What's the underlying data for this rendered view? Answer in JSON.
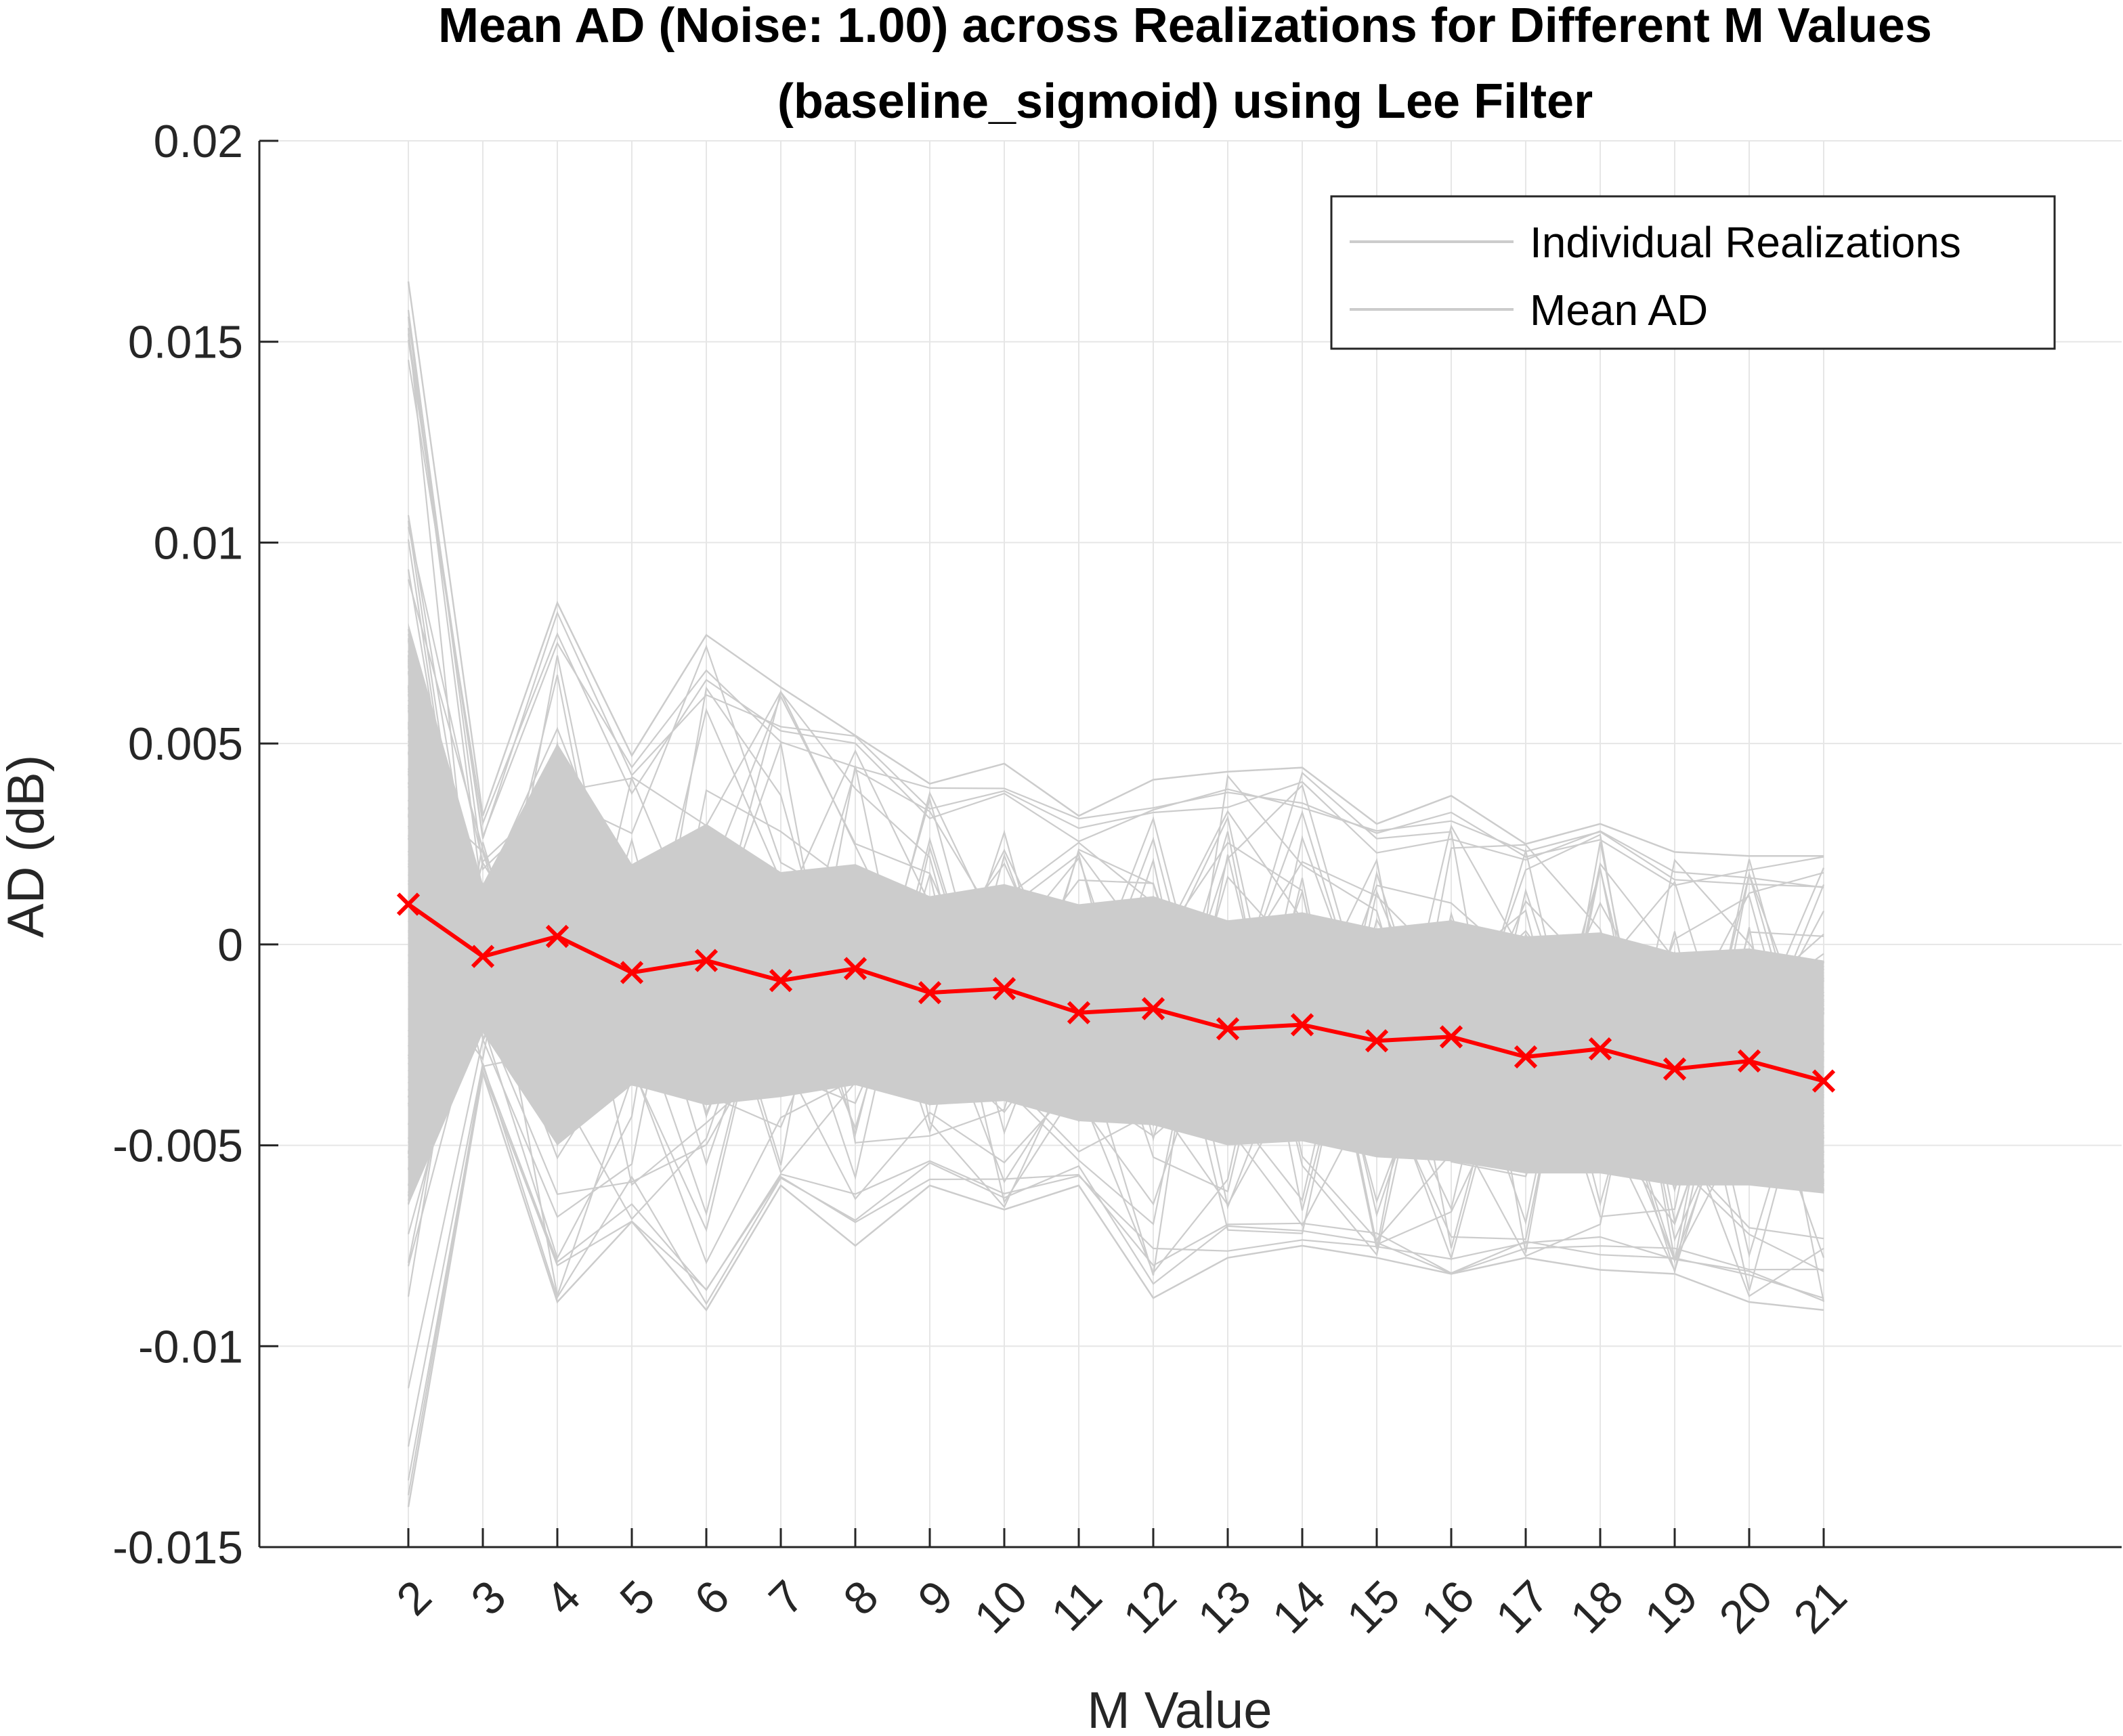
{
  "chart_data": {
    "type": "line",
    "title": [
      "Mean AD (Noise: 1.00) across Realizations for Different M Values",
      "(baseline_sigmoid) using Lee Filter"
    ],
    "xlabel": "M Value",
    "ylabel": "AD (dB)",
    "categories": [
      "2",
      "3",
      "4",
      "5",
      "6",
      "7",
      "8",
      "9",
      "10",
      "11",
      "12",
      "13",
      "14",
      "15",
      "16",
      "17",
      "18",
      "19",
      "20",
      "21"
    ],
    "x": [
      2,
      3,
      4,
      5,
      6,
      7,
      8,
      9,
      10,
      11,
      12,
      13,
      14,
      15,
      16,
      17,
      18,
      19,
      20,
      21
    ],
    "xlim": [
      0,
      25
    ],
    "ylim": [
      -0.015,
      0.02
    ],
    "yticks": [
      -0.015,
      -0.01,
      -0.005,
      0,
      0.005,
      0.01,
      0.015,
      0.02
    ],
    "ytick_labels": [
      "-0.015",
      "-0.01",
      "-0.005",
      "0",
      "0.005",
      "0.01",
      "0.015",
      "0.02"
    ],
    "grid": true,
    "legend_position": "top-right",
    "series": [
      {
        "name": "Individual Realizations",
        "color": "#cccccc",
        "style": "band",
        "upper": [
          0.0165,
          0.0032,
          0.0085,
          0.0047,
          0.0077,
          0.0064,
          0.0052,
          0.004,
          0.0045,
          0.0032,
          0.0041,
          0.0043,
          0.0044,
          0.003,
          0.0037,
          0.0025,
          0.003,
          0.0023,
          0.0022,
          0.0022
        ],
        "lower": [
          -0.014,
          -0.0032,
          -0.0089,
          -0.0069,
          -0.0091,
          -0.006,
          -0.0075,
          -0.006,
          -0.0066,
          -0.006,
          -0.0088,
          -0.0078,
          -0.0075,
          -0.0078,
          -0.0082,
          -0.0078,
          -0.0081,
          -0.0082,
          -0.0089,
          -0.0091
        ],
        "core_upper": [
          0.008,
          0.0015,
          0.005,
          0.002,
          0.003,
          0.0018,
          0.002,
          0.0012,
          0.0015,
          0.001,
          0.0012,
          0.0006,
          0.0008,
          0.0004,
          0.0006,
          0.0002,
          0.0003,
          -0.0002,
          -0.0001,
          -0.0004
        ],
        "core_lower": [
          -0.0065,
          -0.0022,
          -0.005,
          -0.0035,
          -0.004,
          -0.0038,
          -0.0035,
          -0.004,
          -0.0039,
          -0.0044,
          -0.0045,
          -0.005,
          -0.0049,
          -0.0053,
          -0.0054,
          -0.0057,
          -0.0057,
          -0.006,
          -0.006,
          -0.0062
        ]
      },
      {
        "name": "Mean AD",
        "color": "#ff0000",
        "marker": "x",
        "values": [
          0.001,
          -0.0003,
          0.0002,
          -0.0007,
          -0.0004,
          -0.0009,
          -0.0006,
          -0.0012,
          -0.0011,
          -0.0017,
          -0.0016,
          -0.0021,
          -0.002,
          -0.0024,
          -0.0023,
          -0.0028,
          -0.0026,
          -0.0031,
          -0.0029,
          -0.0034
        ]
      }
    ]
  }
}
